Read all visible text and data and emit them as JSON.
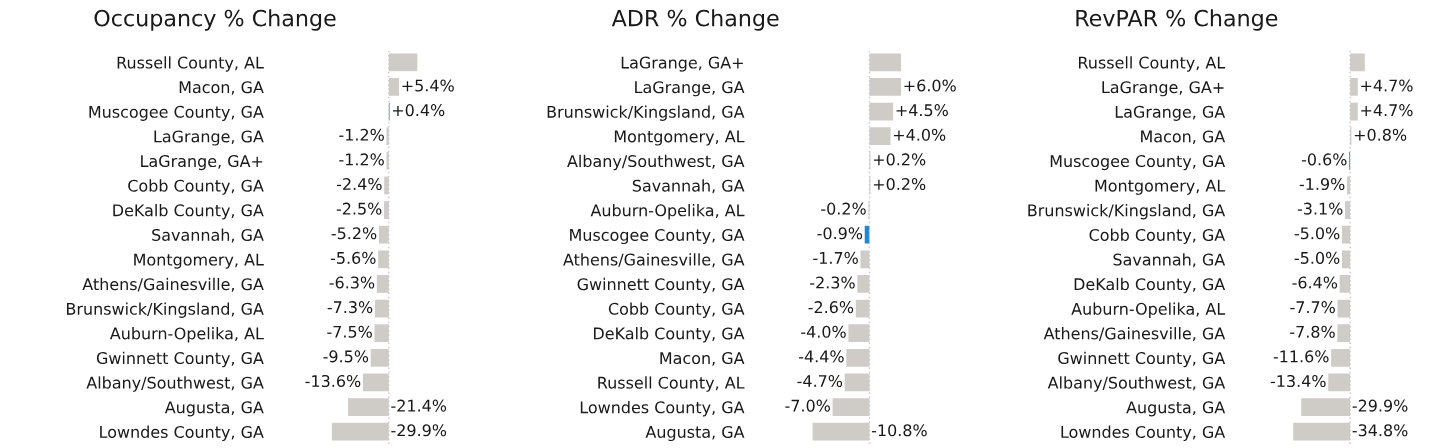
{
  "chart_data": [
    {
      "type": "bar",
      "orientation": "horizontal",
      "title": "Occupancy % Change",
      "ref_lines": [
        {
          "axis": "x",
          "value": 0,
          "color": "#c8c8c8",
          "line_style": "dotted"
        }
      ],
      "categories": [
        "Russell County, AL",
        "Macon, GA",
        "Muscogee County, GA",
        "LaGrange, GA",
        "LaGrange, GA+",
        "Cobb County, GA",
        "DeKalb County, GA",
        "Savannah, GA",
        "Montgomery, AL",
        "Athens/Gainesville, GA",
        "Brunswick/Kingsland, GA",
        "Auburn-Opelika, AL",
        "Gwinnett County, GA",
        "Albany/Southwest, GA",
        "Augusta, GA",
        "Lowndes County, GA"
      ],
      "values": [
        15,
        5.4,
        0.4,
        -1.2,
        -1.2,
        -2.4,
        -2.5,
        -5.2,
        -5.6,
        -6.3,
        -7.3,
        -7.5,
        -9.5,
        -13.6,
        -21.4,
        -29.9
      ],
      "value_labels": [
        null,
        "+5.4%",
        "+0.4%",
        "-1.2%",
        "-1.2%",
        "-2.4%",
        "-2.5%",
        "-5.2%",
        "-5.6%",
        "-6.3%",
        "-7.3%",
        "-7.5%",
        "-9.5%",
        "-13.6%",
        "-21.4%",
        "-29.9%"
      ],
      "colors": [
        "#cfccc8",
        "#cfccc8",
        "#1f86d0",
        "#cfccc8",
        "#cfccc8",
        "#cfccc8",
        "#cfccc8",
        "#cfccc8",
        "#cfccc8",
        "#cfccc8",
        "#cfccc8",
        "#cfccc8",
        "#cfccc8",
        "#cfccc8",
        "#cfccc8",
        "#cfccc8"
      ]
    },
    {
      "type": "bar",
      "orientation": "horizontal",
      "title": "ADR % Change",
      "ref_lines": [
        {
          "axis": "x",
          "value": 0,
          "color": "#c8c8c8",
          "line_style": "dotted"
        }
      ],
      "categories": [
        "LaGrange, GA+",
        "LaGrange, GA",
        "Brunswick/Kingsland, GA",
        "Montgomery, AL",
        "Albany/Southwest, GA",
        "Savannah, GA",
        "Auburn-Opelika, AL",
        "Muscogee County, GA",
        "Athens/Gainesville, GA",
        "Gwinnett County, GA",
        "Cobb County, GA",
        "DeKalb County, GA",
        "Macon, GA",
        "Russell County, AL",
        "Lowndes County, GA",
        "Augusta, GA"
      ],
      "values": [
        6.0,
        6.0,
        4.5,
        4.0,
        0.2,
        0.2,
        -0.2,
        -0.9,
        -1.7,
        -2.3,
        -2.6,
        -4.0,
        -4.4,
        -4.7,
        -7.0,
        -10.8
      ],
      "value_labels": [
        null,
        "+6.0%",
        "+4.5%",
        "+4.0%",
        "+0.2%",
        "+0.2%",
        "-0.2%",
        "-0.9%",
        "-1.7%",
        "-2.3%",
        "-2.6%",
        "-4.0%",
        "-4.4%",
        "-4.7%",
        "-7.0%",
        "-10.8%"
      ],
      "colors": [
        "#cfccc8",
        "#cfccc8",
        "#cfccc8",
        "#cfccc8",
        "#cfccc8",
        "#cfccc8",
        "#cfccc8",
        "#1f86d0",
        "#cfccc8",
        "#cfccc8",
        "#cfccc8",
        "#cfccc8",
        "#cfccc8",
        "#cfccc8",
        "#cfccc8",
        "#cfccc8"
      ]
    },
    {
      "type": "bar",
      "orientation": "horizontal",
      "title": "RevPAR % Change",
      "ref_lines": [
        {
          "axis": "x",
          "value": 0,
          "color": "#c8c8c8",
          "line_style": "dotted"
        }
      ],
      "categories": [
        "Russell County, AL",
        "LaGrange, GA+",
        "LaGrange, GA",
        "Macon, GA",
        "Muscogee County, GA",
        "Montgomery, AL",
        "Brunswick/Kingsland, GA",
        "Cobb County, GA",
        "Savannah, GA",
        "DeKalb County, GA",
        "Auburn-Opelika, AL",
        "Athens/Gainesville, GA",
        "Gwinnett County, GA",
        "Albany/Southwest, GA",
        "Augusta, GA",
        "Lowndes County, GA"
      ],
      "values": [
        9,
        4.7,
        4.7,
        0.8,
        -0.6,
        -1.9,
        -3.1,
        -5.0,
        -5.0,
        -6.4,
        -7.7,
        -7.8,
        -11.6,
        -13.4,
        -29.9,
        -34.8
      ],
      "value_labels": [
        null,
        "+4.7%",
        "+4.7%",
        "+0.8%",
        "-0.6%",
        "-1.9%",
        "-3.1%",
        "-5.0%",
        "-5.0%",
        "-6.4%",
        "-7.7%",
        "-7.8%",
        "-11.6%",
        "-13.4%",
        "-29.9%",
        "-34.8%"
      ],
      "colors": [
        "#cfccc8",
        "#cfccc8",
        "#cfccc8",
        "#cfccc8",
        "#1f86d0",
        "#cfccc8",
        "#cfccc8",
        "#cfccc8",
        "#cfccc8",
        "#cfccc8",
        "#cfccc8",
        "#cfccc8",
        "#cfccc8",
        "#cfccc8",
        "#cfccc8",
        "#cfccc8"
      ]
    }
  ]
}
